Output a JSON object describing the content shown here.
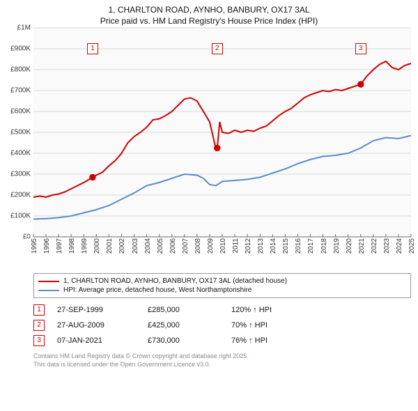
{
  "title_line1": "1, CHARLTON ROAD, AYNHO, BANBURY, OX17 3AL",
  "title_line2": "Price paid vs. HM Land Registry's House Price Index (HPI)",
  "chart": {
    "type": "line",
    "background_color": "#fafafa",
    "grid_color": "#d9d9d9",
    "baseline_color": "#666666",
    "y": {
      "min": 0,
      "max": 1000000,
      "ticks": [
        0,
        100000,
        200000,
        300000,
        400000,
        500000,
        600000,
        700000,
        800000,
        900000,
        1000000
      ],
      "labels": [
        "£0",
        "£100K",
        "£200K",
        "£300K",
        "£400K",
        "£500K",
        "£600K",
        "£700K",
        "£800K",
        "£900K",
        "£1M"
      ],
      "label_fontsize": 10
    },
    "x": {
      "min": 1995,
      "max": 2025,
      "ticks": [
        1995,
        1996,
        1997,
        1998,
        1999,
        2000,
        2001,
        2002,
        2003,
        2004,
        2005,
        2006,
        2007,
        2008,
        2009,
        2010,
        2011,
        2012,
        2013,
        2014,
        2015,
        2016,
        2017,
        2018,
        2019,
        2020,
        2021,
        2022,
        2023,
        2024,
        2025
      ],
      "label_fontsize": 10
    },
    "series": [
      {
        "id": "property",
        "color": "#cc0000",
        "line_width": 2,
        "points": [
          [
            1995,
            190000
          ],
          [
            1995.5,
            195000
          ],
          [
            1996,
            190000
          ],
          [
            1996.5,
            200000
          ],
          [
            1997,
            205000
          ],
          [
            1997.5,
            215000
          ],
          [
            1998,
            230000
          ],
          [
            1998.5,
            245000
          ],
          [
            1999,
            260000
          ],
          [
            1999.7,
            285000
          ],
          [
            2000,
            295000
          ],
          [
            2000.5,
            310000
          ],
          [
            2001,
            340000
          ],
          [
            2001.5,
            365000
          ],
          [
            2002,
            400000
          ],
          [
            2002.5,
            450000
          ],
          [
            2003,
            480000
          ],
          [
            2003.5,
            500000
          ],
          [
            2004,
            525000
          ],
          [
            2004.5,
            560000
          ],
          [
            2005,
            565000
          ],
          [
            2005.5,
            580000
          ],
          [
            2006,
            600000
          ],
          [
            2006.5,
            630000
          ],
          [
            2007,
            660000
          ],
          [
            2007.5,
            665000
          ],
          [
            2008,
            650000
          ],
          [
            2008.5,
            600000
          ],
          [
            2009,
            550000
          ],
          [
            2009.5,
            420000
          ],
          [
            2009.6,
            425000
          ],
          [
            2009.8,
            550000
          ],
          [
            2010,
            500000
          ],
          [
            2010.5,
            495000
          ],
          [
            2011,
            510000
          ],
          [
            2011.5,
            500000
          ],
          [
            2012,
            510000
          ],
          [
            2012.5,
            505000
          ],
          [
            2013,
            520000
          ],
          [
            2013.5,
            530000
          ],
          [
            2014,
            555000
          ],
          [
            2014.5,
            580000
          ],
          [
            2015,
            600000
          ],
          [
            2015.5,
            615000
          ],
          [
            2016,
            640000
          ],
          [
            2016.5,
            665000
          ],
          [
            2017,
            680000
          ],
          [
            2017.5,
            690000
          ],
          [
            2018,
            700000
          ],
          [
            2018.5,
            695000
          ],
          [
            2019,
            705000
          ],
          [
            2019.5,
            700000
          ],
          [
            2020,
            710000
          ],
          [
            2020.5,
            720000
          ],
          [
            2021,
            730000
          ],
          [
            2021.5,
            770000
          ],
          [
            2022,
            800000
          ],
          [
            2022.5,
            825000
          ],
          [
            2023,
            840000
          ],
          [
            2023.5,
            810000
          ],
          [
            2024,
            800000
          ],
          [
            2024.5,
            820000
          ],
          [
            2025,
            830000
          ]
        ]
      },
      {
        "id": "hpi",
        "color": "#5b8bc9",
        "line_width": 1.5,
        "points": [
          [
            1995,
            85000
          ],
          [
            1996,
            87000
          ],
          [
            1997,
            92000
          ],
          [
            1998,
            100000
          ],
          [
            1999,
            115000
          ],
          [
            2000,
            130000
          ],
          [
            2001,
            150000
          ],
          [
            2002,
            180000
          ],
          [
            2003,
            210000
          ],
          [
            2004,
            245000
          ],
          [
            2005,
            260000
          ],
          [
            2006,
            280000
          ],
          [
            2007,
            300000
          ],
          [
            2008,
            295000
          ],
          [
            2008.5,
            280000
          ],
          [
            2009,
            250000
          ],
          [
            2009.5,
            245000
          ],
          [
            2010,
            265000
          ],
          [
            2011,
            270000
          ],
          [
            2012,
            275000
          ],
          [
            2013,
            285000
          ],
          [
            2014,
            305000
          ],
          [
            2015,
            325000
          ],
          [
            2016,
            350000
          ],
          [
            2017,
            370000
          ],
          [
            2018,
            385000
          ],
          [
            2019,
            390000
          ],
          [
            2020,
            400000
          ],
          [
            2021,
            425000
          ],
          [
            2022,
            460000
          ],
          [
            2023,
            475000
          ],
          [
            2024,
            470000
          ],
          [
            2025,
            485000
          ]
        ]
      }
    ],
    "event_markers": [
      {
        "n": "1",
        "x": 1999.7,
        "y": 285000,
        "box_color": "#cc0000"
      },
      {
        "n": "2",
        "x": 2009.6,
        "y": 425000,
        "box_color": "#cc0000"
      },
      {
        "n": "3",
        "x": 2021.0,
        "y": 730000,
        "box_color": "#cc0000"
      }
    ],
    "marker_box_top_y": 900000,
    "marker_radius": 4
  },
  "legend": {
    "items": [
      {
        "color": "#cc0000",
        "label": "1, CHARLTON ROAD, AYNHO, BANBURY, OX17 3AL (detached house)"
      },
      {
        "color": "#5b8bc9",
        "label": "HPI: Average price, detached house, West Northamptonshire"
      }
    ]
  },
  "events": [
    {
      "n": "1",
      "date": "27-SEP-1999",
      "price": "£285,000",
      "hpi_rel": "120% ↑ HPI",
      "box_color": "#cc0000"
    },
    {
      "n": "2",
      "date": "27-AUG-2009",
      "price": "£425,000",
      "hpi_rel": "70% ↑ HPI",
      "box_color": "#cc0000"
    },
    {
      "n": "3",
      "date": "07-JAN-2021",
      "price": "£730,000",
      "hpi_rel": "76% ↑ HPI",
      "box_color": "#cc0000"
    }
  ],
  "footer_line1": "Contains HM Land Registry data © Crown copyright and database right 2025.",
  "footer_line2": "This data is licensed under the Open Government Licence v3.0."
}
